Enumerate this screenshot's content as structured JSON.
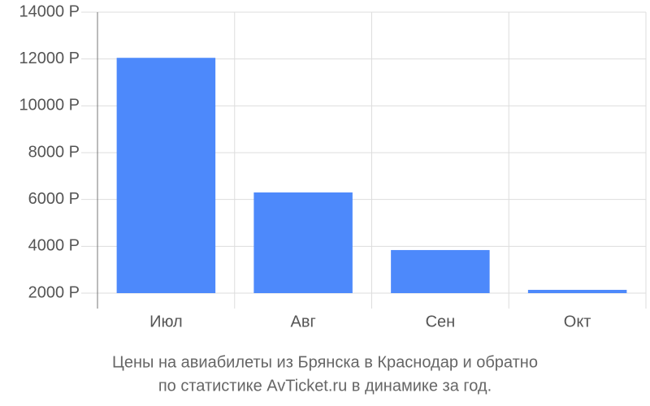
{
  "chart_data": {
    "type": "bar",
    "title": "Цены на авиабилеты из Брянска в Краснодар и обратно",
    "subtitle": "по статистике AvTicket.ru в динамике за год.",
    "categories": [
      "Июл",
      "Авг",
      "Сен",
      "Окт"
    ],
    "values": [
      12050,
      6300,
      3840,
      2140
    ],
    "color": "#4d89fb",
    "ylim": [
      2000,
      14000
    ],
    "yticks": [
      {
        "value": 2000,
        "label": "2000 Р"
      },
      {
        "value": 4000,
        "label": "4000 Р"
      },
      {
        "value": 6000,
        "label": "6000 Р"
      },
      {
        "value": 8000,
        "label": "8000 Р"
      },
      {
        "value": 10000,
        "label": "10000 Р"
      },
      {
        "value": 12000,
        "label": "12000 Р"
      },
      {
        "value": 14000,
        "label": "14000 Р"
      }
    ],
    "grid": true
  }
}
